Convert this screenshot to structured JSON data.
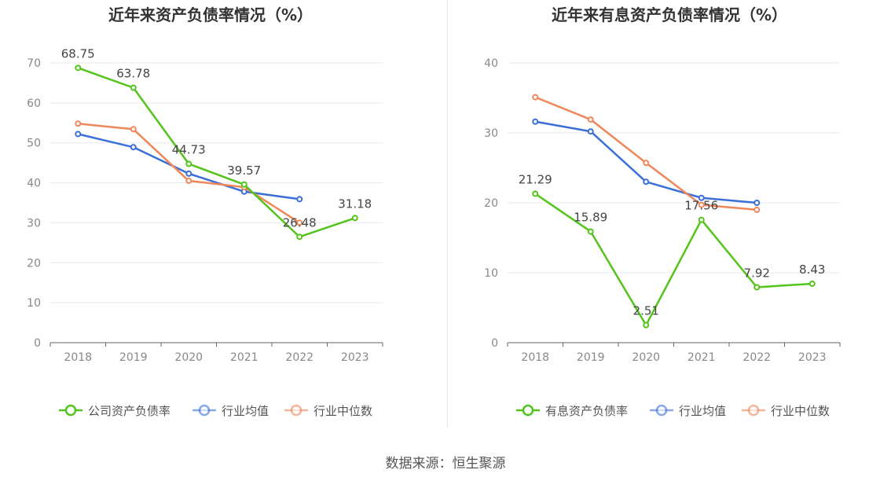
{
  "source": "数据来源：恒生聚源",
  "colors": {
    "company": "#52c41a",
    "avg": "#3a6fd8",
    "median": "#f0875a",
    "grid": "#e6e8f0",
    "axis": "#666666",
    "tick": "#888888"
  },
  "chart_data": [
    {
      "type": "line",
      "title": "近年来资产负债率情况（%）",
      "categories": [
        "2018",
        "2019",
        "2020",
        "2021",
        "2022",
        "2023"
      ],
      "ylim": [
        0,
        70
      ],
      "yticks": [
        0,
        10,
        20,
        30,
        40,
        50,
        60,
        70
      ],
      "grid": true,
      "legend_position": "bottom",
      "series": [
        {
          "name": "公司资产负债率",
          "color": "#52c41a",
          "values": [
            68.75,
            63.78,
            44.73,
            39.57,
            26.48,
            31.18
          ],
          "labels": [
            "68.75",
            "63.78",
            "44.73",
            "39.57",
            "26.48",
            "31.18"
          ]
        },
        {
          "name": "行业均值",
          "color": "#3a6fd8",
          "values": [
            52.2,
            48.9,
            42.3,
            37.8,
            35.9,
            null
          ]
        },
        {
          "name": "行业中位数",
          "color": "#f0875a",
          "values": [
            54.8,
            53.4,
            40.5,
            38.9,
            30.0,
            null
          ]
        }
      ]
    },
    {
      "type": "line",
      "title": "近年来有息资产负债率情况（%）",
      "categories": [
        "2018",
        "2019",
        "2020",
        "2021",
        "2022",
        "2023"
      ],
      "ylim": [
        0,
        40
      ],
      "yticks": [
        0,
        10,
        20,
        30,
        40
      ],
      "grid": true,
      "legend_position": "bottom",
      "series": [
        {
          "name": "有息资产负债率",
          "color": "#52c41a",
          "values": [
            21.29,
            15.89,
            2.51,
            17.56,
            7.92,
            8.43
          ],
          "labels": [
            "21.29",
            "15.89",
            "2.51",
            "17.56",
            "7.92",
            "8.43"
          ]
        },
        {
          "name": "行业均值",
          "color": "#3a6fd8",
          "values": [
            31.6,
            30.2,
            23.0,
            20.7,
            20.0,
            null
          ]
        },
        {
          "name": "行业中位数",
          "color": "#f0875a",
          "values": [
            35.1,
            31.9,
            25.7,
            19.7,
            19.0,
            null
          ]
        }
      ]
    }
  ]
}
